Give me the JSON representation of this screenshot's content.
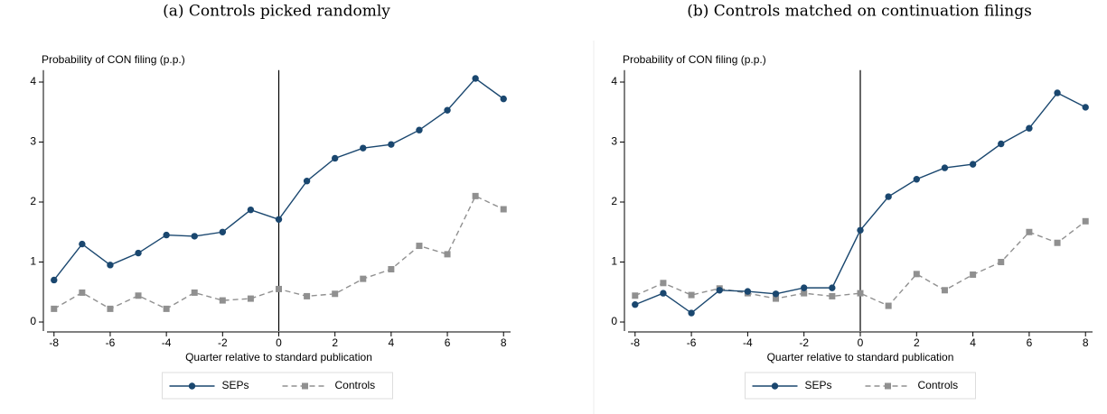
{
  "chart_data": [
    {
      "type": "line",
      "title": "(a) Controls picked randomly",
      "y_label": "Probability of CON filing (p.p.)",
      "x_label": "Quarter relative to standard publication",
      "x": [
        -8,
        -7,
        -6,
        -5,
        -4,
        -3,
        -2,
        -1,
        0,
        1,
        2,
        3,
        4,
        5,
        6,
        7,
        8
      ],
      "series": [
        {
          "name": "SEPs",
          "color": "#1a476f",
          "marker": "circle",
          "dashed": false,
          "values": [
            0.7,
            1.3,
            0.95,
            1.15,
            1.45,
            1.43,
            1.5,
            1.87,
            1.71,
            2.35,
            2.73,
            2.9,
            2.96,
            3.2,
            3.53,
            4.06,
            3.72
          ]
        },
        {
          "name": "Controls",
          "color": "#909090",
          "marker": "square",
          "dashed": true,
          "values": [
            0.22,
            0.49,
            0.22,
            0.44,
            0.22,
            0.49,
            0.36,
            0.39,
            0.55,
            0.43,
            0.47,
            0.72,
            0.88,
            1.27,
            1.13,
            2.1,
            1.88
          ]
        }
      ],
      "xlim": [
        -8.25,
        8.25
      ],
      "xticks": [
        -8,
        -6,
        -4,
        -2,
        0,
        2,
        4,
        6,
        8
      ],
      "ylim": [
        -0.15,
        4.2
      ],
      "yticks": [
        0,
        1,
        2,
        3,
        4
      ],
      "vline": 0
    },
    {
      "type": "line",
      "title": "(b) Controls matched on continuation filings",
      "y_label": "Probability of CON filing (p.p.)",
      "x_label": "Quarter relative to standard publication",
      "x": [
        -8,
        -7,
        -6,
        -5,
        -4,
        -3,
        -2,
        -1,
        0,
        1,
        2,
        3,
        4,
        5,
        6,
        7,
        8
      ],
      "series": [
        {
          "name": "SEPs",
          "color": "#1a476f",
          "marker": "circle",
          "dashed": false,
          "values": [
            0.29,
            0.48,
            0.15,
            0.53,
            0.51,
            0.47,
            0.57,
            0.57,
            1.53,
            2.09,
            2.38,
            2.57,
            2.63,
            2.97,
            3.23,
            3.82,
            3.58
          ]
        },
        {
          "name": "Controls",
          "color": "#909090",
          "marker": "square",
          "dashed": true,
          "values": [
            0.44,
            0.65,
            0.45,
            0.56,
            0.48,
            0.39,
            0.48,
            0.43,
            0.48,
            0.27,
            0.8,
            0.53,
            0.79,
            1.0,
            1.5,
            1.32,
            1.68
          ]
        }
      ],
      "xlim": [
        -8.25,
        8.25
      ],
      "xticks": [
        -8,
        -6,
        -4,
        -2,
        0,
        2,
        4,
        6,
        8
      ],
      "ylim": [
        -0.15,
        4.2
      ],
      "yticks": [
        0,
        1,
        2,
        3,
        4
      ],
      "vline": 0
    }
  ]
}
